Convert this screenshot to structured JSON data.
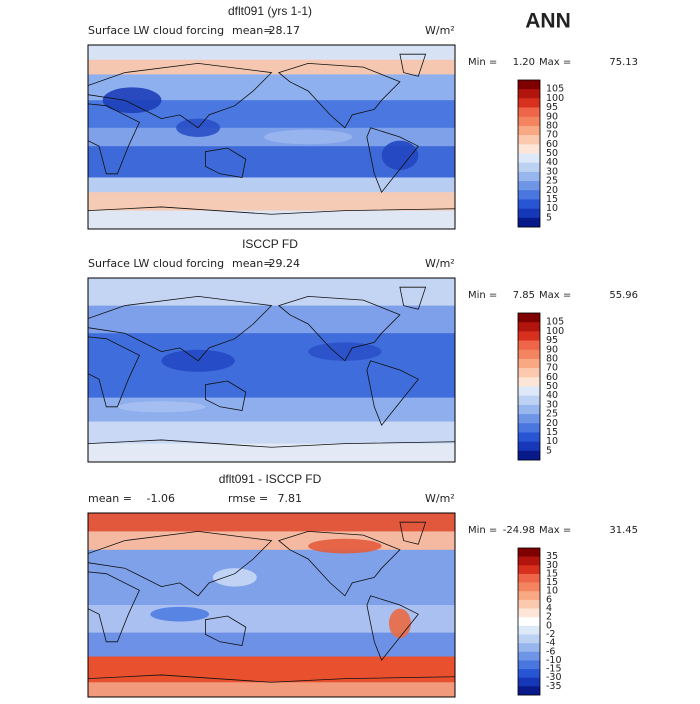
{
  "header": {
    "title": "ANN"
  },
  "panels": [
    {
      "title": "dflt091 (yrs 1-1)",
      "subtitle": "Surface LW cloud forcing",
      "mean_label": "mean=",
      "mean": "28.17",
      "units": "W/m²",
      "min_label": "Min =",
      "min": "1.20",
      "max_label": "Max =",
      "max": "75.13",
      "colorbar": {
        "labels": [
          "105",
          "100",
          "95",
          "90",
          "80",
          "70",
          "60",
          "50",
          "40",
          "30",
          "25",
          "20",
          "15",
          "10",
          "5"
        ],
        "colors": [
          "#7f0000",
          "#b2140e",
          "#d7301f",
          "#ef6548",
          "#f4845f",
          "#f8a882",
          "#fbc9ae",
          "#fde6d8",
          "#dde8f8",
          "#bdd1f3",
          "#98b6ee",
          "#6f95e7",
          "#4a76df",
          "#2855d4",
          "#1637b8",
          "#08198a"
        ]
      }
    },
    {
      "title": "ISCCP FD",
      "subtitle": "Surface LW cloud forcing",
      "mean_label": "mean=",
      "mean": "29.24",
      "units": "W/m²",
      "min_label": "Min =",
      "min": "7.85",
      "max_label": "Max =",
      "max": "55.96",
      "colorbar": {
        "labels": [
          "105",
          "100",
          "95",
          "90",
          "80",
          "70",
          "60",
          "50",
          "40",
          "30",
          "25",
          "20",
          "15",
          "10",
          "5"
        ],
        "colors": [
          "#7f0000",
          "#b2140e",
          "#d7301f",
          "#ef6548",
          "#f4845f",
          "#f8a882",
          "#fbc9ae",
          "#fde6d8",
          "#dde8f8",
          "#bdd1f3",
          "#98b6ee",
          "#6f95e7",
          "#4a76df",
          "#2855d4",
          "#1637b8",
          "#08198a"
        ]
      }
    },
    {
      "title": "dflt091 - ISCCP FD",
      "mean_label": "mean =",
      "mean": "-1.06",
      "rmse_label": "rmse =",
      "rmse": "7.81",
      "units": "W/m²",
      "min_label": "Min =",
      "min": "-24.98",
      "max_label": "Max =",
      "max": "31.45",
      "colorbar": {
        "labels": [
          "35",
          "30",
          "15",
          "15",
          "10",
          "6",
          "4",
          "2",
          "0",
          "-2",
          "-4",
          "-6",
          "-10",
          "-15",
          "-30",
          "-35"
        ],
        "colors": [
          "#7f0000",
          "#b2140e",
          "#d7301f",
          "#ef6548",
          "#f4845f",
          "#f8a882",
          "#fbc9ae",
          "#fde6d8",
          "#ffffff",
          "#dde8f8",
          "#bdd1f3",
          "#98b6ee",
          "#6f95e7",
          "#4a76df",
          "#2855d4",
          "#1637b8",
          "#08198a"
        ]
      }
    }
  ]
}
